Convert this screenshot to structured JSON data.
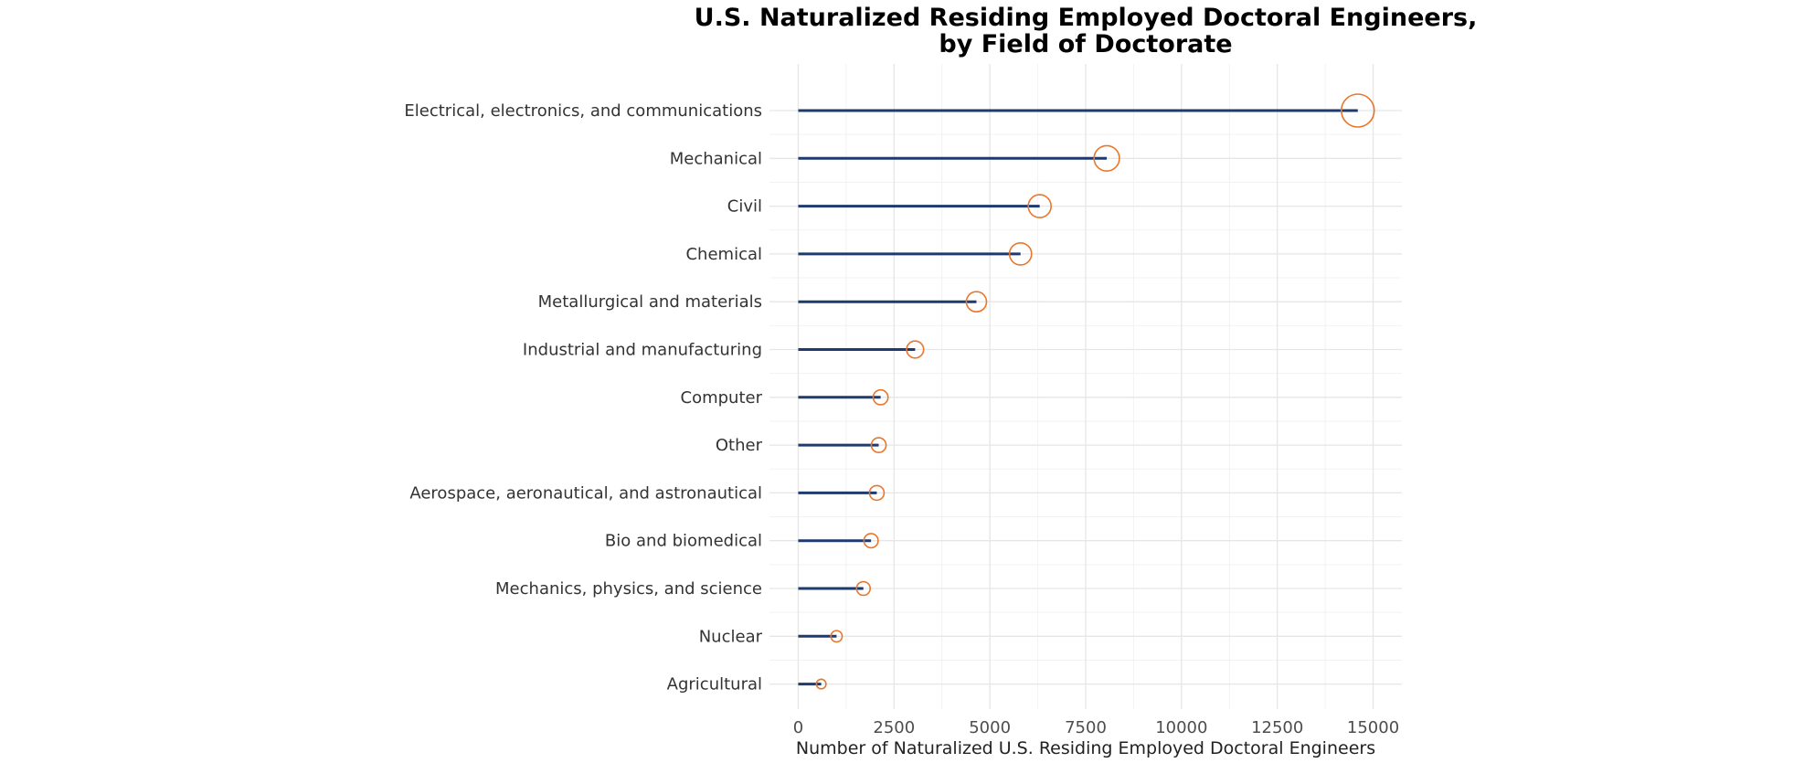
{
  "chart_data": {
    "type": "lollipop",
    "title": "U.S. Naturalized Residing Employed Doctoral Engineers,",
    "subtitle": "by Field of Doctorate",
    "xlabel": "Number of Naturalized U.S. Residing Employed Doctoral Engineers",
    "ylabel": "",
    "xlim": [
      -750,
      15750
    ],
    "x_ticks": [
      0,
      2500,
      5000,
      7500,
      10000,
      12500,
      15000
    ],
    "grid": true,
    "categories": [
      "Electrical, electronics, and communications",
      "Mechanical",
      "Civil",
      "Chemical",
      "Metallurgical and materials",
      "Industrial and manufacturing",
      "Computer",
      "Other",
      "Aerospace, aeronautical, and astronautical",
      "Bio and biomedical",
      "Mechanics, physics, and science",
      "Nuclear",
      "Agricultural"
    ],
    "values": [
      14600,
      8050,
      6300,
      5800,
      4650,
      3050,
      2150,
      2100,
      2050,
      1900,
      1700,
      1000,
      600
    ],
    "line_color": "#1f3a6e",
    "marker_color": "#e8772e"
  }
}
